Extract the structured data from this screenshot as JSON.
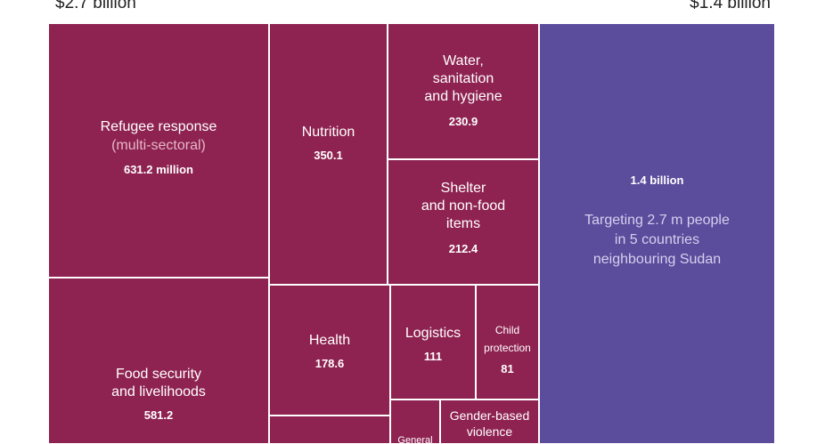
{
  "header": {
    "left_total": "$2.7 billion",
    "right_total": "$1.4 billion"
  },
  "colors": {
    "sudan_tiles": "#8e2251",
    "regional_tile": "#5b4c9c",
    "tile_border": "#ffffff",
    "muted_text": "#e6b8c8",
    "regional_note_text": "#d6d0ee"
  },
  "chart_data": {
    "type": "treemap",
    "units": "US$ million",
    "groups": [
      {
        "total": "$2.7 billion",
        "color": "#8e2251",
        "items": [
          {
            "id": "refugee",
            "label": "Refugee response",
            "sublabel": "(multi-sectoral)",
            "value": 631.2,
            "value_label": "631.2 million"
          },
          {
            "id": "food",
            "label": "Food security\nand livelihoods",
            "value": 581.2,
            "value_label": "581.2"
          },
          {
            "id": "nutrition",
            "label": "Nutrition",
            "value": 350.1,
            "value_label": "350.1"
          },
          {
            "id": "wash",
            "label": "Water,\nsanitation\nand hygiene",
            "value": 230.9,
            "value_label": "230.9"
          },
          {
            "id": "shelter",
            "label": "Shelter\nand non-food\nitems",
            "value": 212.4,
            "value_label": "212.4"
          },
          {
            "id": "health",
            "label": "Health",
            "value": 178.6,
            "value_label": "178.6"
          },
          {
            "id": "logistics",
            "label": "Logistics",
            "value": 111,
            "value_label": "111"
          },
          {
            "id": "child",
            "label": "Child\nprotection",
            "value": 81,
            "value_label": "81"
          },
          {
            "id": "gbv",
            "label": "Gender-based\nviolence",
            "value": null,
            "value_label": ""
          },
          {
            "id": "general",
            "label": "General",
            "value": null,
            "value_label": ""
          },
          {
            "id": "other",
            "label": "",
            "value": null,
            "value_label": ""
          }
        ]
      },
      {
        "total": "$1.4 billion",
        "color": "#5b4c9c",
        "items": [
          {
            "id": "regional",
            "label": "1.4 billion",
            "note": "Targeting 2.7 m people\nin 5 countries\nneighbouring Sudan",
            "value": 1400,
            "value_label": "1.4 billion"
          }
        ]
      }
    ]
  }
}
